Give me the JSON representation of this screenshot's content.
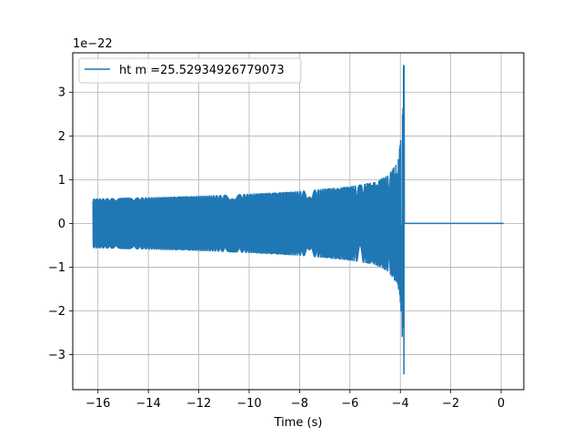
{
  "chart_data": {
    "type": "line",
    "xlabel": "Time (s)",
    "ylabel": "",
    "offset_text": "1e−22",
    "xlim": [
      -17.0,
      0.9
    ],
    "ylim": [
      -3.8,
      3.9
    ],
    "xticks": [
      -16,
      -14,
      -12,
      -10,
      -8,
      -6,
      -4,
      -2,
      0
    ],
    "xtick_labels": [
      "−16",
      "−14",
      "−12",
      "−10",
      "−8",
      "−6",
      "−4",
      "−2",
      "0"
    ],
    "yticks": [
      -3,
      -2,
      -1,
      0,
      1,
      2,
      3
    ],
    "ytick_labels": [
      "−3",
      "−2",
      "−1",
      "0",
      "1",
      "2",
      "3"
    ],
    "grid": true,
    "legend_position": "upper-left",
    "series": [
      {
        "name": "ht m =25.52934926779073",
        "color": "#1f77b4",
        "envelope": {
          "t_start": -16.2,
          "t_merger": -3.85,
          "t_end": 0.1,
          "amplitude_at_start": 0.57,
          "amplitude_at_merger": 3.62,
          "min_at_merger": -3.45,
          "post_merger_value": 0.0
        },
        "envelope_samples": [
          {
            "t": -16.2,
            "amp": 0.57
          },
          {
            "t": -14.0,
            "amp": 0.6
          },
          {
            "t": -12.0,
            "amp": 0.63
          },
          {
            "t": -10.0,
            "amp": 0.68
          },
          {
            "t": -8.0,
            "amp": 0.74
          },
          {
            "t": -6.0,
            "amp": 0.85
          },
          {
            "t": -5.0,
            "amp": 0.95
          },
          {
            "t": -4.5,
            "amp": 1.1
          },
          {
            "t": -4.1,
            "amp": 1.4
          },
          {
            "t": -3.95,
            "amp": 2.1
          },
          {
            "t": -3.87,
            "amp": 3.62
          },
          {
            "t": -3.85,
            "amp": 0.0
          },
          {
            "t": 0.1,
            "amp": 0.0
          }
        ]
      }
    ]
  }
}
